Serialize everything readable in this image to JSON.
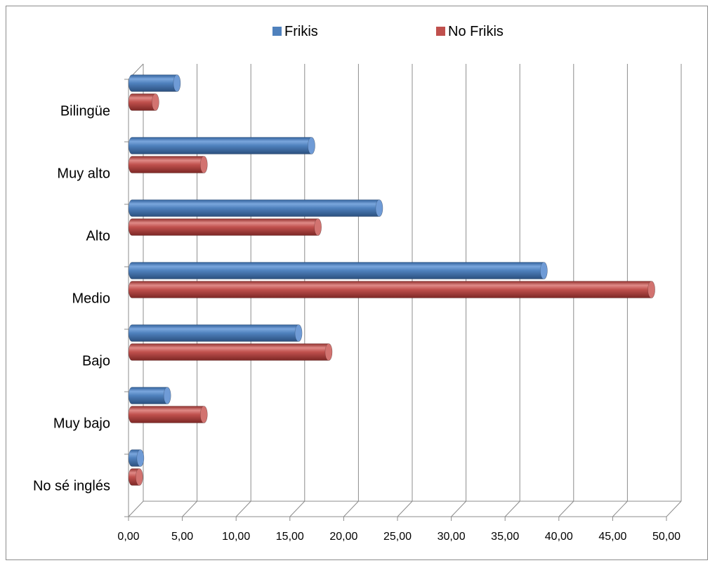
{
  "chart_data": {
    "type": "bar",
    "orientation": "horizontal",
    "style": "3d-cylinder",
    "categories": [
      "Bilingüe",
      "Muy alto",
      "Alto",
      "Medio",
      "Bajo",
      "Muy bajo",
      "No sé inglés"
    ],
    "series": [
      {
        "name": "Frikis",
        "color": "#4F81BD",
        "values": [
          4.5,
          17.0,
          23.3,
          38.6,
          15.8,
          3.6,
          1.1
        ]
      },
      {
        "name": "No Frikis",
        "color": "#C0504D",
        "values": [
          2.5,
          7.0,
          17.6,
          48.6,
          18.6,
          7.0,
          1.0
        ]
      }
    ],
    "xlim": [
      0,
      50
    ],
    "xticks": [
      "0,00",
      "5,00",
      "10,00",
      "15,00",
      "20,00",
      "25,00",
      "30,00",
      "35,00",
      "40,00",
      "45,00",
      "50,00"
    ],
    "title": "",
    "xlabel": "",
    "ylabel": "",
    "grid": true,
    "legend": "top"
  }
}
